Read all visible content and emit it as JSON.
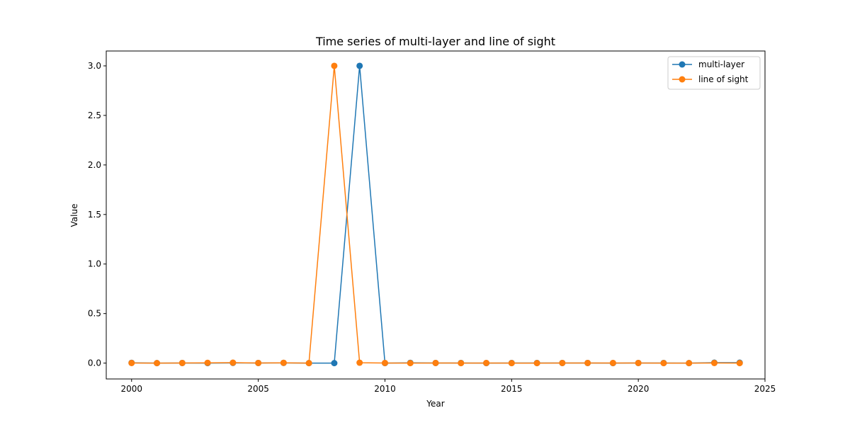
{
  "chart_data": {
    "type": "line",
    "title": "Time series of multi-layer and line of sight",
    "xlabel": "Year",
    "ylabel": "Value",
    "xlim": [
      1999,
      2025
    ],
    "ylim": [
      -0.16,
      3.15
    ],
    "x_ticks": [
      2000,
      2005,
      2010,
      2015,
      2020,
      2025
    ],
    "y_ticks": [
      0.0,
      0.5,
      1.0,
      1.5,
      2.0,
      2.5,
      3.0
    ],
    "x_tick_labels": [
      "2000",
      "2005",
      "2010",
      "2015",
      "2020",
      "2025"
    ],
    "y_tick_labels": [
      "0.0",
      "0.5",
      "1.0",
      "1.5",
      "2.0",
      "2.5",
      "3.0"
    ],
    "grid": false,
    "legend_position": "top-right",
    "x": [
      2000,
      2001,
      2002,
      2003,
      2004,
      2005,
      2006,
      2007,
      2008,
      2009,
      2010,
      2011,
      2012,
      2013,
      2014,
      2015,
      2016,
      2017,
      2018,
      2019,
      2020,
      2021,
      2022,
      2023,
      2024
    ],
    "series": [
      {
        "name": "multi-layer",
        "color": "#1f77b4",
        "values": [
          0.003,
          0.0,
          0.001,
          0.0,
          0.002,
          0.001,
          0.002,
          0.0,
          0.0,
          3.0,
          0.0,
          0.003,
          0.001,
          0.001,
          0.0,
          0.001,
          0.001,
          0.001,
          0.001,
          0.0,
          0.001,
          0.001,
          0.0,
          0.004,
          0.004
        ]
      },
      {
        "name": "line of sight",
        "color": "#ff7f0e",
        "values": [
          0.001,
          0.0,
          0.001,
          0.003,
          0.004,
          0.001,
          0.003,
          0.0,
          3.0,
          0.004,
          0.001,
          0.0,
          0.001,
          0.0,
          0.001,
          0.0,
          0.0,
          0.001,
          0.001,
          0.001,
          0.001,
          0.0,
          0.0,
          0.001,
          0.0
        ]
      }
    ]
  }
}
